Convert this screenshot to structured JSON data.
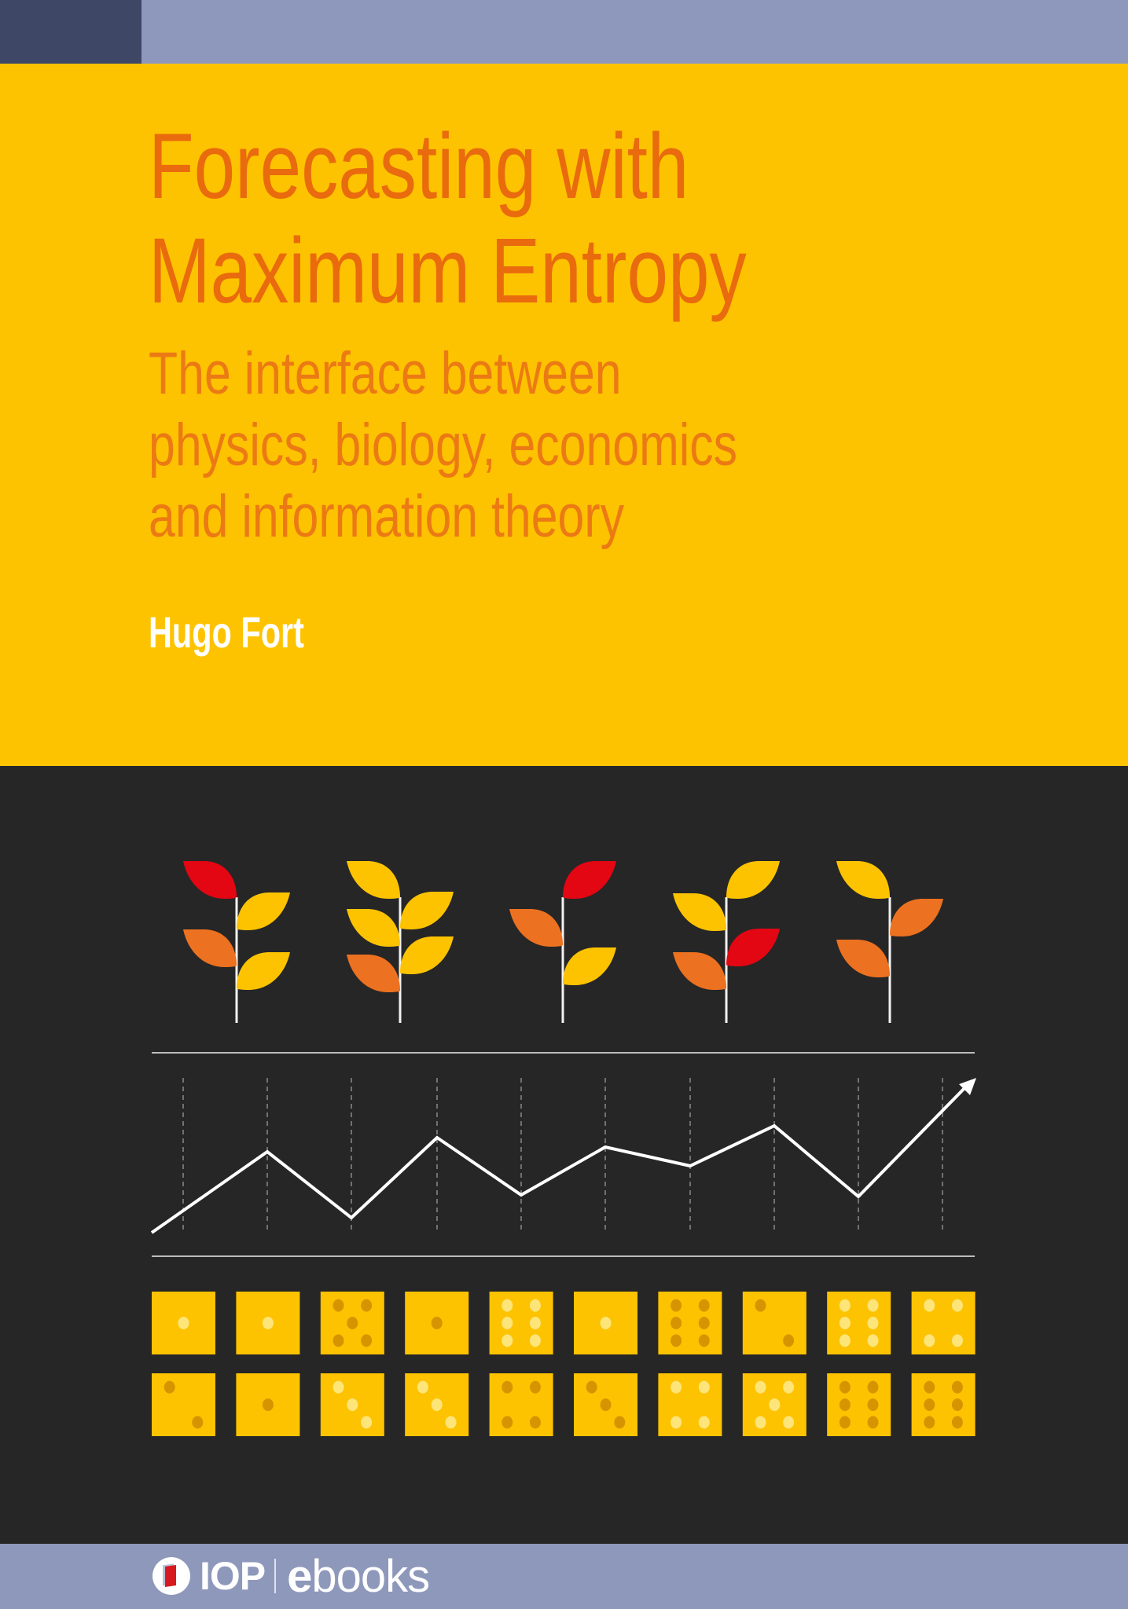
{
  "cover": {
    "title_lines": [
      "Forecasting with",
      "Maximum Entropy"
    ],
    "subtitle_lines": [
      "The interface between",
      "physics, biology, economics",
      "and information theory"
    ],
    "author": "Hugo Fort"
  },
  "publisher": {
    "logo_text": "IOP",
    "series_prefix": "e",
    "series_rest": "books"
  },
  "colors": {
    "background_yellow": "#fdc300",
    "background_dark": "#262626",
    "header_strip": "#8e98bd",
    "header_block": "#3e4766",
    "title_orange": "#e96b0e",
    "leaf_red": "#e30613",
    "leaf_orange": "#ec7120",
    "leaf_yellow": "#fdc300",
    "die_face": "#fdc300",
    "pip_light": "#fde57a",
    "pip_dark": "#d69500"
  },
  "illustration": {
    "plants": [
      {
        "leaves": [
          {
            "side": "left",
            "color": "red"
          },
          {
            "side": "right",
            "color": "yellow"
          },
          {
            "side": "left",
            "color": "orange"
          },
          {
            "side": "right",
            "color": "yellow"
          }
        ]
      },
      {
        "leaves": [
          {
            "side": "left",
            "color": "yellow"
          },
          {
            "side": "right",
            "color": "yellow"
          },
          {
            "side": "left",
            "color": "yellow"
          },
          {
            "side": "right",
            "color": "yellow"
          },
          {
            "side": "left",
            "color": "orange"
          }
        ]
      },
      {
        "leaves": [
          {
            "side": "right",
            "color": "red"
          },
          {
            "side": "left",
            "color": "orange"
          },
          {
            "side": "right",
            "color": "yellow"
          }
        ]
      },
      {
        "leaves": [
          {
            "side": "right",
            "color": "yellow"
          },
          {
            "side": "left",
            "color": "yellow"
          },
          {
            "side": "right",
            "color": "red"
          },
          {
            "side": "left",
            "color": "orange"
          }
        ]
      },
      {
        "leaves": [
          {
            "side": "left",
            "color": "yellow"
          },
          {
            "side": "right",
            "color": "orange"
          },
          {
            "side": "left",
            "color": "orange"
          }
        ]
      }
    ],
    "dice_rows": [
      [
        {
          "value": 1,
          "pips": "light"
        },
        {
          "value": 1,
          "pips": "light"
        },
        {
          "value": 5,
          "pips": "dark"
        },
        {
          "value": 1,
          "pips": "dark"
        },
        {
          "value": 6,
          "pips": "light"
        },
        {
          "value": 1,
          "pips": "light"
        },
        {
          "value": 6,
          "pips": "dark"
        },
        {
          "value": 2,
          "pips": "dark"
        },
        {
          "value": 6,
          "pips": "light"
        },
        {
          "value": 4,
          "pips": "light"
        }
      ],
      [
        {
          "value": 2,
          "pips": "dark"
        },
        {
          "value": 1,
          "pips": "dark"
        },
        {
          "value": 3,
          "pips": "light"
        },
        {
          "value": 3,
          "pips": "light"
        },
        {
          "value": 4,
          "pips": "dark"
        },
        {
          "value": 3,
          "pips": "dark"
        },
        {
          "value": 4,
          "pips": "light"
        },
        {
          "value": 5,
          "pips": "light"
        },
        {
          "value": 6,
          "pips": "dark"
        },
        {
          "value": 6,
          "pips": "dark"
        }
      ]
    ]
  }
}
